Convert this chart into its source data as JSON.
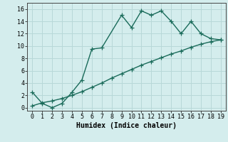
{
  "line1_x": [
    0,
    1,
    2,
    3,
    4,
    5,
    6,
    7,
    9,
    10,
    11,
    12,
    13,
    14,
    15,
    16,
    17,
    18,
    19
  ],
  "line1_y": [
    2.5,
    0.7,
    0.0,
    0.7,
    2.5,
    4.5,
    9.5,
    9.7,
    15.0,
    13.0,
    15.7,
    15.0,
    15.7,
    14.0,
    12.0,
    14.0,
    12.0,
    11.2,
    11.0
  ],
  "line2_x": [
    0,
    1,
    2,
    3,
    4,
    5,
    6,
    7,
    8,
    9,
    10,
    11,
    12,
    13,
    14,
    15,
    16,
    17,
    18,
    19
  ],
  "line2_y": [
    0.3,
    0.8,
    1.1,
    1.5,
    2.0,
    2.6,
    3.3,
    4.0,
    4.8,
    5.5,
    6.2,
    6.9,
    7.5,
    8.1,
    8.7,
    9.2,
    9.8,
    10.3,
    10.7,
    11.0
  ],
  "color": "#1a6b5a",
  "background_color": "#d4eded",
  "grid_color": "#b8d8d8",
  "xlabel": "Humidex (Indice chaleur)",
  "xlim": [
    -0.5,
    19.5
  ],
  "ylim": [
    -0.5,
    17
  ],
  "xticks": [
    0,
    1,
    2,
    3,
    4,
    5,
    6,
    7,
    8,
    9,
    10,
    11,
    12,
    13,
    14,
    15,
    16,
    17,
    18,
    19
  ],
  "yticks": [
    0,
    2,
    4,
    6,
    8,
    10,
    12,
    14,
    16
  ],
  "marker": "+",
  "markersize": 4,
  "linewidth": 1.0,
  "xlabel_fontsize": 7,
  "tick_fontsize": 6
}
